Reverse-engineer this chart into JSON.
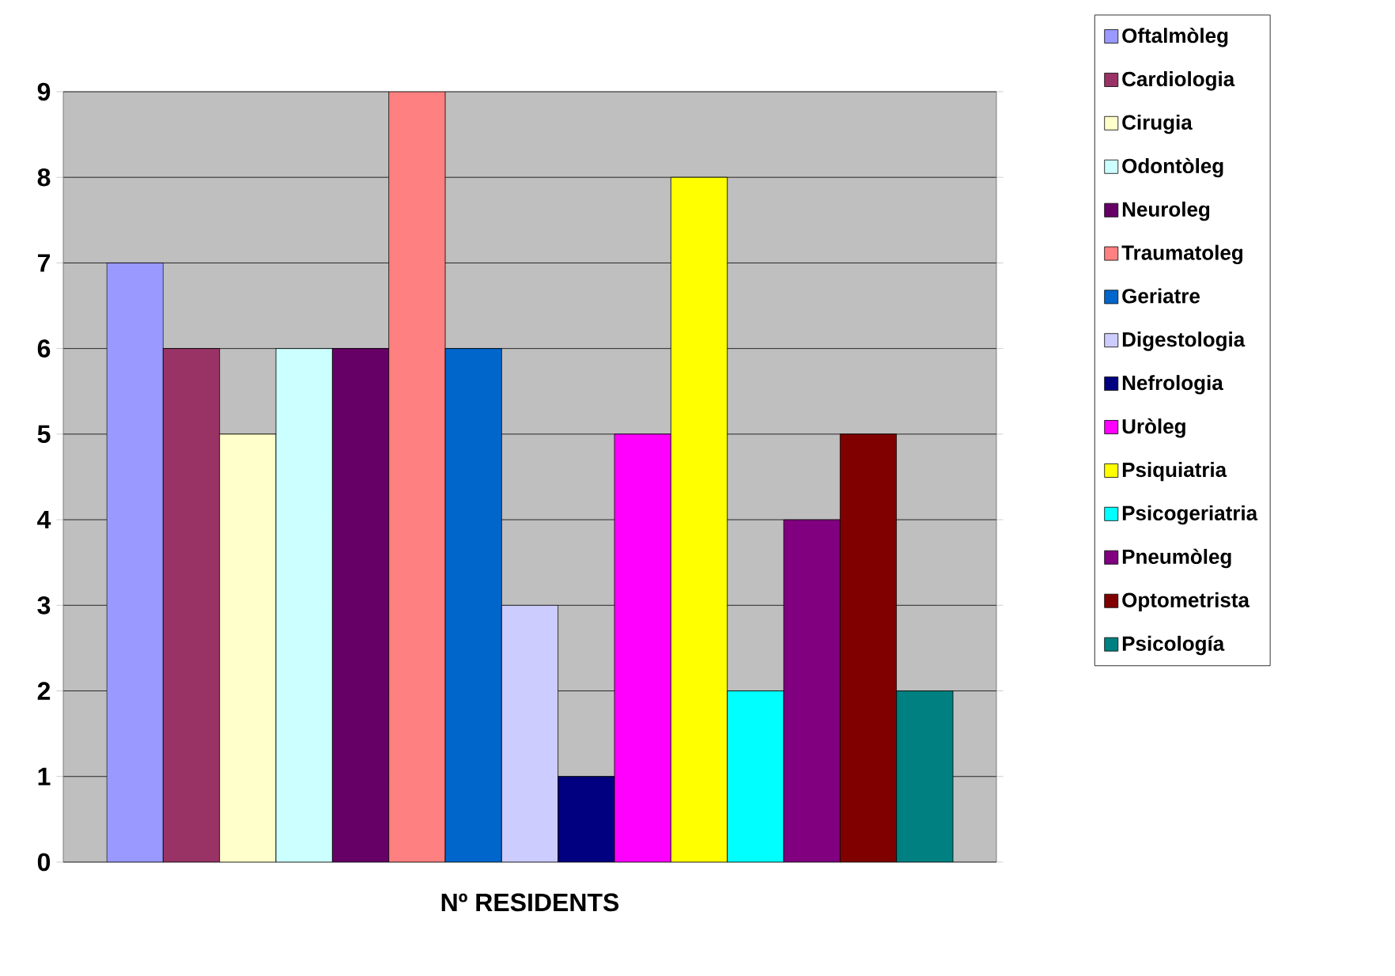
{
  "chart_data": {
    "type": "bar",
    "categories": [
      "Nº RESIDENTS"
    ],
    "series": [
      {
        "name": "Oftalmòleg",
        "color": "#9999ff",
        "values": [
          7
        ]
      },
      {
        "name": "Cardiologia",
        "color": "#993366",
        "values": [
          6
        ]
      },
      {
        "name": "Cirugia",
        "color": "#ffffcc",
        "values": [
          5
        ]
      },
      {
        "name": "Odontòleg",
        "color": "#ccffff",
        "values": [
          6
        ]
      },
      {
        "name": "Neuroleg",
        "color": "#660066",
        "values": [
          6
        ]
      },
      {
        "name": "Traumatoleg",
        "color": "#ff8080",
        "values": [
          9
        ]
      },
      {
        "name": "Geriatre",
        "color": "#0066cc",
        "values": [
          6
        ]
      },
      {
        "name": "Digestologia",
        "color": "#ccccff",
        "values": [
          3
        ]
      },
      {
        "name": "Nefrologia",
        "color": "#000080",
        "values": [
          1
        ]
      },
      {
        "name": "Uròleg",
        "color": "#ff00ff",
        "values": [
          5
        ]
      },
      {
        "name": "Psiquiatria",
        "color": "#ffff00",
        "values": [
          8
        ]
      },
      {
        "name": "Psicogeriatria",
        "color": "#00ffff",
        "values": [
          2
        ]
      },
      {
        "name": "Pneumòleg",
        "color": "#800080",
        "values": [
          4
        ]
      },
      {
        "name": "Optometrista",
        "color": "#800000",
        "values": [
          5
        ]
      },
      {
        "name": "Psicología",
        "color": "#008080",
        "values": [
          2
        ]
      }
    ],
    "ylim": [
      0,
      9
    ],
    "yticks": [
      0,
      1,
      2,
      3,
      4,
      5,
      6,
      7,
      8,
      9
    ],
    "grid": "y",
    "legend": "right"
  }
}
